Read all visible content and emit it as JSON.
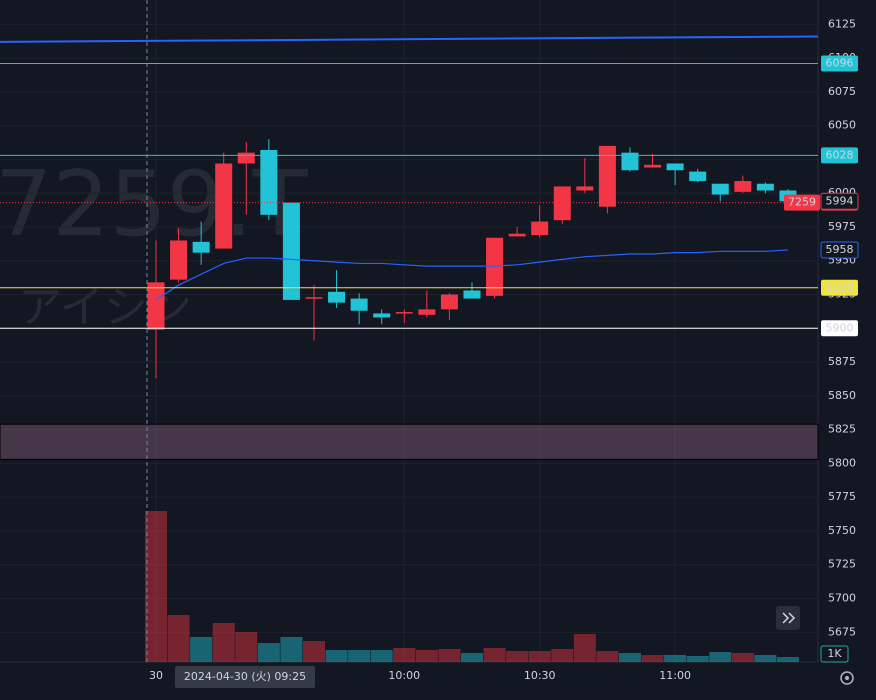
{
  "chart_data": {
    "type": "candlestick",
    "watermark": "7259.T",
    "watermark_subtitle": "アイシン",
    "categories": [
      "30",
      null,
      null,
      null,
      null,
      null,
      null,
      null,
      null,
      null,
      null,
      "10:00",
      null,
      null,
      null,
      null,
      null,
      "10:30",
      null,
      null,
      null,
      null,
      null,
      "11:00",
      null,
      null,
      null,
      null,
      null
    ],
    "open": [
      5899,
      5936,
      5964,
      5959,
      6022,
      6032,
      5993,
      5922,
      5927,
      5922,
      5911,
      5911,
      5910,
      5914,
      5928,
      5924,
      5968,
      5969,
      5980,
      6002,
      5990,
      6030,
      6019,
      6022,
      6016,
      6007,
      6001,
      6007,
      6002
    ],
    "high": [
      5965,
      5974,
      5979,
      6030,
      6038,
      6040,
      5993,
      5932,
      5943,
      5926,
      5914,
      5914,
      5928,
      5926,
      5934,
      5967,
      5975,
      5991,
      6005,
      6026,
      6035,
      6034,
      6029,
      6022,
      6018,
      6007,
      6013,
      6008,
      6003
    ],
    "low": [
      5863,
      5934,
      5947,
      5959,
      5984,
      5980,
      5921,
      5891,
      5915,
      5903,
      5903,
      5904,
      5908,
      5906,
      5922,
      5922,
      5968,
      5967,
      5977,
      6000,
      5985,
      6016,
      6019,
      6006,
      6008,
      5994,
      6000,
      6000,
      5993
    ],
    "close": [
      5934,
      5965,
      5956,
      6022,
      6030,
      5984,
      5921,
      5923,
      5919,
      5913,
      5908,
      5912,
      5914,
      5925,
      5922,
      5967,
      5970,
      5979,
      6005,
      6005,
      6035,
      6017,
      6021,
      6017,
      6009,
      5999,
      6009,
      6002,
      5994
    ],
    "volume": [
      151,
      47,
      25,
      39,
      30,
      19,
      25,
      21,
      12,
      12,
      12,
      14,
      12,
      13,
      9,
      14,
      11,
      11,
      13,
      28,
      11,
      9,
      7,
      7,
      6,
      10,
      9,
      7,
      5
    ],
    "vlim": [
      0,
      204
    ],
    "volume_unit": "1K",
    "up_color": "#f23645",
    "down_color": "#22c3d6",
    "ma": {
      "color": "#2962ff",
      "values": [
        5921,
        5932,
        5940,
        5948,
        5952,
        5952,
        5951,
        5950,
        5949,
        5948,
        5948,
        5947,
        5946,
        5946,
        5946,
        5946,
        5947,
        5949,
        5951,
        5953,
        5954,
        5955,
        5955,
        5956,
        5956,
        5957,
        5957,
        5957,
        5958
      ]
    },
    "upper_line": {
      "color": "#2962ff",
      "values": [
        6112,
        6116
      ]
    },
    "levels": [
      {
        "value": 6096,
        "color": "#22c3d6"
      },
      {
        "value": 6028,
        "color": "#22c3d6"
      },
      {
        "value": 5930,
        "color": "#f0e442"
      },
      {
        "value": 5900,
        "color": "#ffffff"
      }
    ],
    "marker": 5994,
    "last_price": 5993,
    "symbol_code": "7259",
    "zone": [
      5803,
      5829
    ],
    "crosshair": "2024-04-30 (火)   09:25",
    "ylim": [
      5653,
      6143
    ],
    "yticks": [
      5675,
      5700,
      5725,
      5750,
      5775,
      5800,
      5825,
      5850,
      5875,
      5900,
      5925,
      5950,
      5975,
      6000,
      6025,
      6050,
      6075,
      6100,
      6125
    ]
  }
}
